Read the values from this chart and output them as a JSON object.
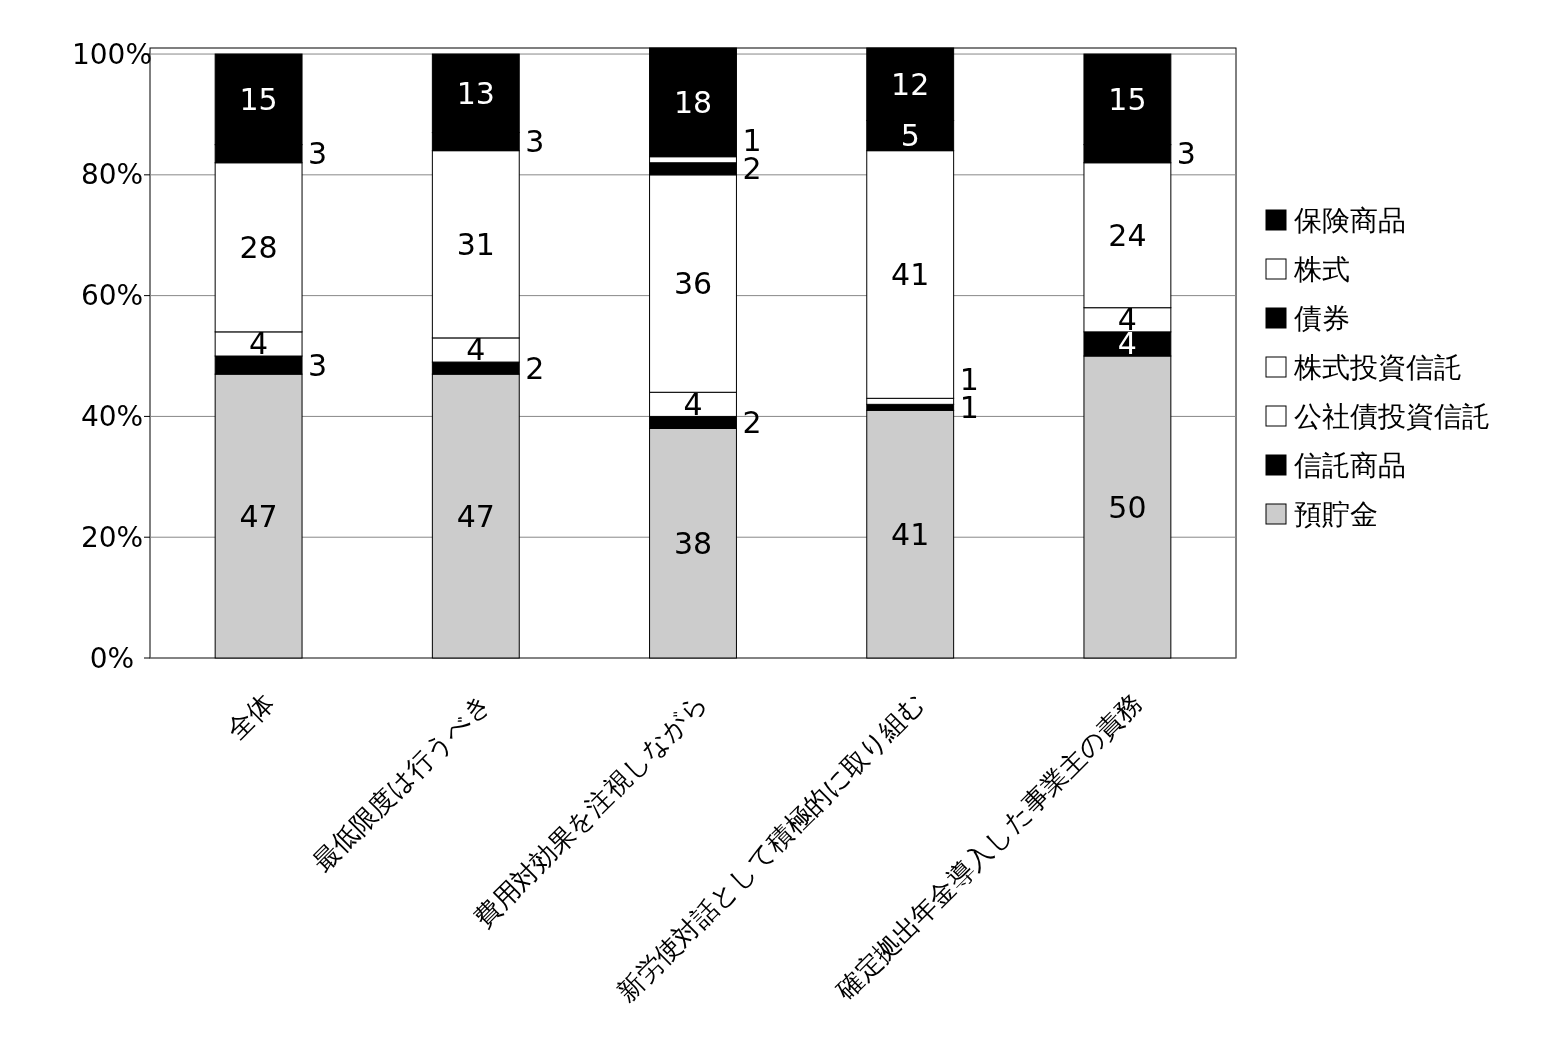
{
  "chart_data": {
    "type": "bar",
    "stacked": true,
    "categories": [
      "全体",
      "最低限度は行うべき",
      "費用対効果を注視しながら",
      "新労使対話として積極的に取り組む",
      "確定拠出年金導入した事業主の責務"
    ],
    "series": [
      {
        "name": "預貯金",
        "color": "#cccccc",
        "values": [
          47,
          47,
          38,
          41,
          50
        ],
        "value_labels": [
          "47",
          "47",
          "38",
          "41",
          "50"
        ]
      },
      {
        "name": "信託商品",
        "color": "#000000",
        "values": [
          3,
          2,
          2,
          1,
          4
        ],
        "value_labels": [
          "3",
          "2",
          "2",
          "1",
          "4"
        ]
      },
      {
        "name": "公社債投資信託",
        "color": "#ffffff",
        "values": [
          4,
          4,
          4,
          1,
          4
        ],
        "value_labels": [
          "4",
          "4",
          "4",
          "1",
          "4"
        ]
      },
      {
        "name": "株式投資信託",
        "color": "#ffffff",
        "values": [
          28,
          31,
          36,
          41,
          24
        ],
        "value_labels": [
          "28",
          "31",
          "36",
          "41",
          "24"
        ]
      },
      {
        "name": "債券",
        "color": "#000000",
        "values": [
          3,
          3,
          2,
          5,
          3
        ],
        "value_labels": [
          "3",
          "3",
          "2",
          "5",
          "3"
        ]
      },
      {
        "name": "株式",
        "color": "#ffffff",
        "values": [
          0,
          0,
          1,
          0,
          0
        ],
        "value_labels": [
          null,
          null,
          "1",
          null,
          null
        ]
      },
      {
        "name": "保険商品",
        "color": "#000000",
        "values": [
          15,
          13,
          18,
          12,
          15
        ],
        "value_labels": [
          "15",
          "13",
          "18",
          "12",
          "15"
        ]
      }
    ],
    "ylim": [
      0,
      101
    ],
    "yticks": [
      {
        "value": 0,
        "label": "0%"
      },
      {
        "value": 20,
        "label": "20%"
      },
      {
        "value": 40,
        "label": "40%"
      },
      {
        "value": 60,
        "label": "60%"
      },
      {
        "value": 80,
        "label": "80%"
      },
      {
        "value": 100,
        "label": "100%"
      }
    ],
    "grid": "y",
    "legend": "right"
  }
}
